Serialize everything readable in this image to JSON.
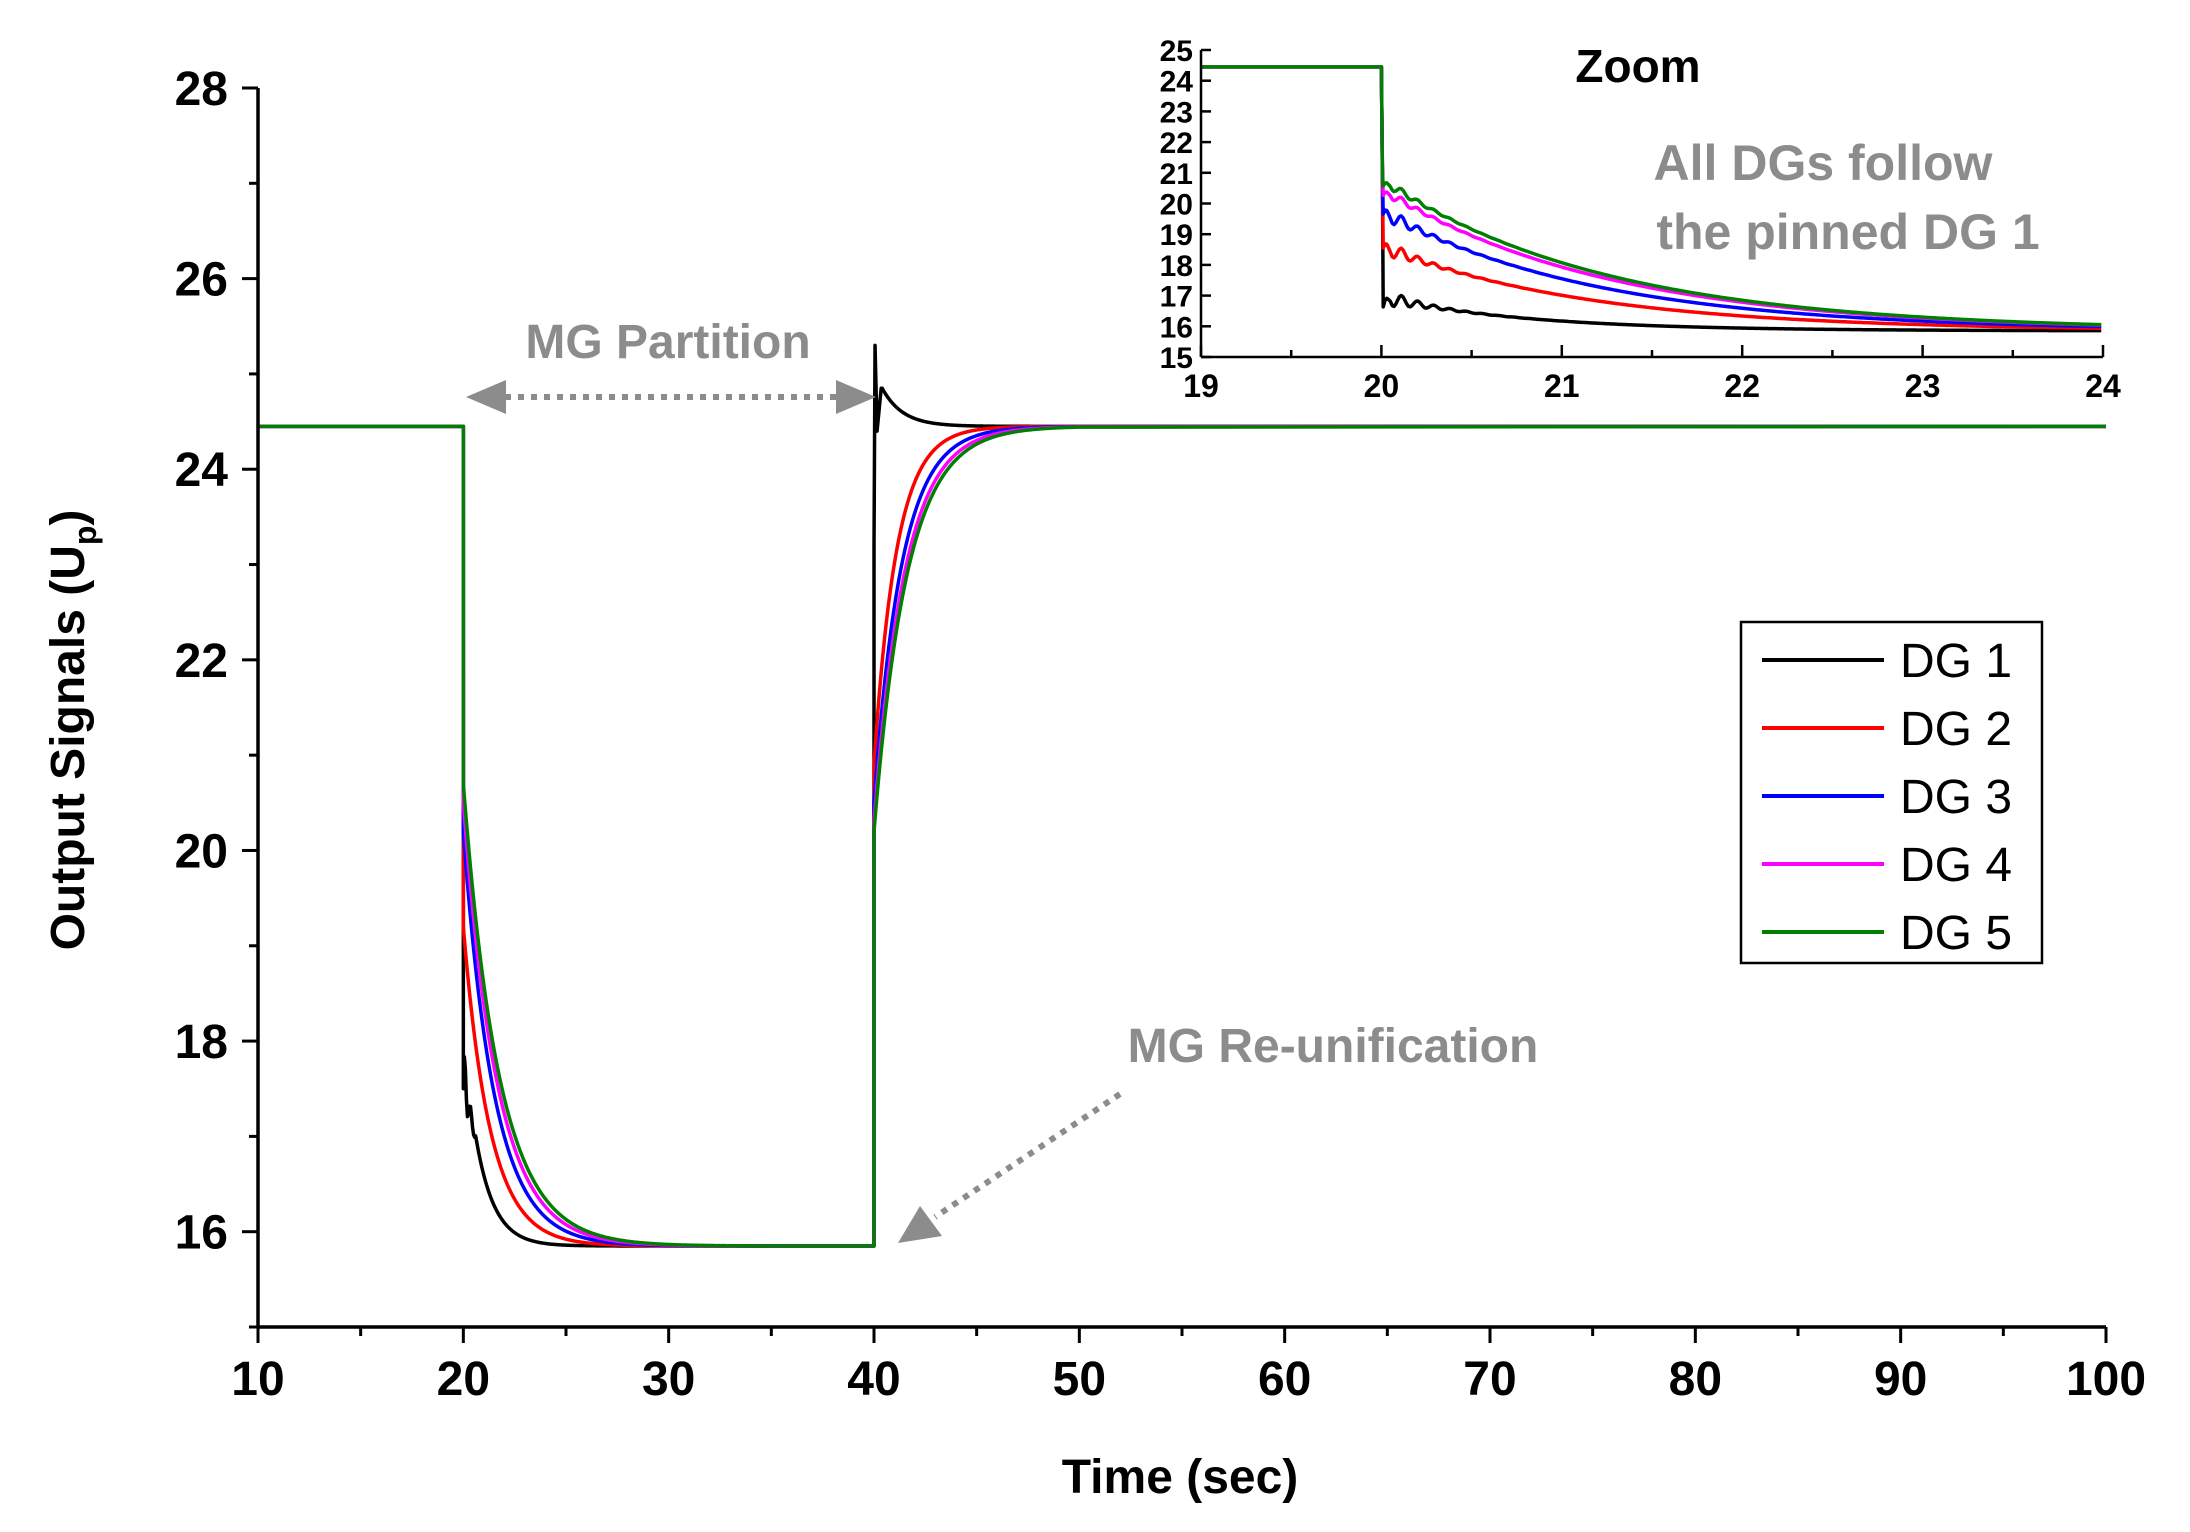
{
  "chart_data": [
    {
      "type": "line",
      "id": "main",
      "title": "",
      "xlabel": "Time (sec)",
      "ylabel_main": "Output Signals (U",
      "ylabel_sub": "p",
      "ylabel_close": ")",
      "xlim": [
        10,
        100
      ],
      "ylim": [
        15,
        28
      ],
      "xticks": [
        10,
        20,
        30,
        40,
        50,
        60,
        70,
        80,
        90,
        100
      ],
      "yticks": [
        16,
        18,
        20,
        22,
        24,
        26,
        28
      ],
      "xtick_labels": [
        "10",
        "20",
        "30",
        "40",
        "50",
        "60",
        "70",
        "80",
        "90",
        "100"
      ],
      "ytick_labels": [
        "16",
        "18",
        "20",
        "22",
        "24",
        "26",
        "28"
      ],
      "grid": false,
      "legend_position": "right",
      "series": [
        {
          "name": "DG 1",
          "color": "#000000",
          "step_down_time": 20,
          "step_up_time": 40,
          "high": 24.45,
          "low": 15.85,
          "settle_down": 0.9,
          "settle_up": 0.7,
          "dip_to": 16.3,
          "overshoot_to": 25.3,
          "overshoot_hold": 24.85
        },
        {
          "name": "DG 2",
          "color": "#ff0000",
          "step_down_time": 20,
          "step_up_time": 40,
          "high": 24.45,
          "low": 15.85,
          "settle_down": 1.3,
          "settle_up": 1.1
        },
        {
          "name": "DG 3",
          "color": "#0000ff",
          "step_down_time": 20,
          "step_up_time": 40,
          "high": 24.45,
          "low": 15.85,
          "settle_down": 1.5,
          "settle_up": 1.35
        },
        {
          "name": "DG 4",
          "color": "#ff00ff",
          "step_down_time": 20,
          "step_up_time": 40,
          "high": 24.45,
          "low": 15.85,
          "settle_down": 1.65,
          "settle_up": 1.5
        },
        {
          "name": "DG 5",
          "color": "#008000",
          "step_down_time": 20,
          "step_up_time": 40,
          "high": 24.45,
          "low": 15.85,
          "settle_down": 1.75,
          "settle_up": 1.6
        }
      ],
      "annotations": [
        {
          "id": "partition",
          "text": "MG Partition",
          "from_x": 20,
          "to_x": 40,
          "at_y": 24.8
        },
        {
          "id": "reunification",
          "text": "MG Re-unification",
          "points_to_x": 40,
          "points_to_y": 16
        }
      ]
    },
    {
      "type": "line",
      "id": "inset",
      "title": "Zoom",
      "xlim": [
        19,
        24
      ],
      "ylim": [
        15,
        25
      ],
      "xticks": [
        19,
        20,
        21,
        22,
        23,
        24
      ],
      "yticks": [
        15,
        16,
        17,
        18,
        19,
        20,
        21,
        22,
        23,
        24,
        25
      ],
      "xtick_labels": [
        "19",
        "20",
        "21",
        "22",
        "23",
        "24"
      ],
      "ytick_labels": [
        "15",
        "16",
        "17",
        "18",
        "19",
        "20",
        "21",
        "22",
        "23",
        "24",
        "25"
      ],
      "annotation": [
        "All DGs follow",
        "the pinned DG 1"
      ],
      "series": [
        {
          "name": "DG 1",
          "color": "#000000",
          "start": 24.45,
          "jump_to": 16.9,
          "final": 15.85,
          "decay": 0.8
        },
        {
          "name": "DG 2",
          "color": "#ff0000",
          "start": 24.45,
          "jump_to": 18.5,
          "final": 15.85,
          "decay": 1.15
        },
        {
          "name": "DG 3",
          "color": "#0000ff",
          "start": 24.45,
          "jump_to": 19.6,
          "final": 15.85,
          "decay": 1.2
        },
        {
          "name": "DG 4",
          "color": "#ff00ff",
          "start": 24.45,
          "jump_to": 20.3,
          "final": 15.85,
          "decay": 1.25
        },
        {
          "name": "DG 5",
          "color": "#008000",
          "start": 24.45,
          "jump_to": 20.6,
          "final": 15.85,
          "decay": 1.25
        }
      ]
    }
  ]
}
